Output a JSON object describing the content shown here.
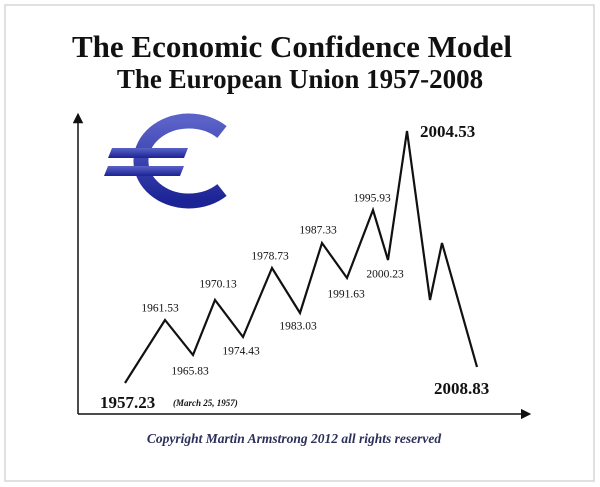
{
  "title": "The Economic Confidence Model",
  "subtitle": "The European Union 1957-2008",
  "turning_points": [
    "1957.23",
    "1961.53",
    "1965.83",
    "1970.13",
    "1974.43",
    "1978.73",
    "1983.03",
    "1987.33",
    "1991.63",
    "1995.93",
    "2000.23",
    "2004.53",
    "2008.83"
  ],
  "start_note": "(March 25, 1957)",
  "copyright": "Copyright Martin Armstrong 2012 all rights reserved"
}
